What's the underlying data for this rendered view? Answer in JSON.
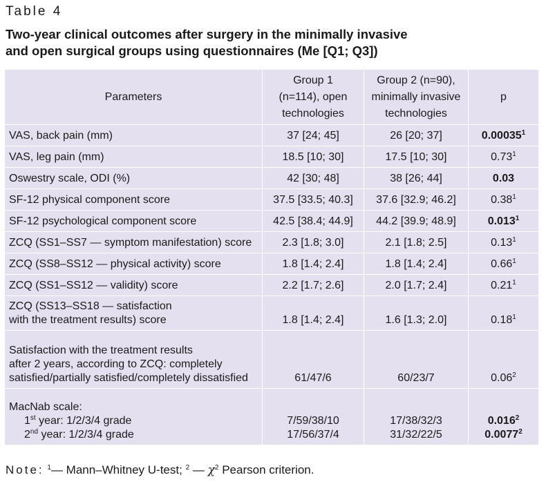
{
  "table_label": "Table 4",
  "title_line1": "Two-year clinical outcomes after surgery in the minimally invasive",
  "title_line2": "and open surgical groups using questionnaires (Me [Q1; Q3])",
  "headers": {
    "parameters": "Parameters",
    "group1": [
      "Group 1",
      "(n=114), open",
      "technologies"
    ],
    "group2": [
      "Group 2 (n=90),",
      "minimally invasive",
      "technologies"
    ],
    "p": "p"
  },
  "rows": [
    {
      "param": "VAS, back pain (mm)",
      "g1": "37 [24; 45]",
      "g2": "26 [20; 37]",
      "p": "0.00035",
      "sup": "1",
      "bold": true
    },
    {
      "param": "VAS, leg pain (mm)",
      "g1": "18.5 [10; 30]",
      "g2": "17.5 [10; 30]",
      "p": "0.73",
      "sup": "1",
      "bold": false
    },
    {
      "param": "Oswestry scale, ODI (%)",
      "g1": "42 [30; 48]",
      "g2": "38 [26; 44]",
      "p": "0.03",
      "sup": "",
      "bold": true
    },
    {
      "param": "SF-12 physical component score",
      "g1": "37.5 [33.5; 40.3]",
      "g2": "37.6 [32.9; 46.2]",
      "p": "0.38",
      "sup": "1",
      "bold": false
    },
    {
      "param": "SF-12 psychological component score",
      "g1": "42.5 [38.4; 44.9]",
      "g2": "44.2 [39.9; 48.9]",
      "p": "0.013",
      "sup": "1",
      "bold": true
    },
    {
      "param": "ZCQ (SS1–SS7 — symptom manifestation) score",
      "g1": "2.3 [1.8; 3.0]",
      "g2": "2.1 [1.8; 2.5]",
      "p": "0.13",
      "sup": "1",
      "bold": false
    },
    {
      "param": "ZCQ (SS8–SS12 — physical activity) score",
      "g1": "1.8 [1.4; 2.4]",
      "g2": "1.8 [1.4; 2.4]",
      "p": "0.66",
      "sup": "1",
      "bold": false
    },
    {
      "param": "ZCQ (SS1–SS12 — validity) score",
      "g1": "2.2 [1.7; 2.6]",
      "g2": "2.0 [1.7; 2.4]",
      "p": "0.21",
      "sup": "1",
      "bold": false
    }
  ],
  "row_zcq_sat": {
    "param_line1": "ZCQ (SS13–SS18 — satisfaction",
    "param_line2": "with the treatment results) score",
    "g1": "1.8 [1.4; 2.4]",
    "g2": "1.6 [1.3; 2.0]",
    "p": "0.18",
    "sup": "1"
  },
  "row_satisfaction": {
    "param_line1": "Satisfaction with the treatment results",
    "param_line2": "after 2 years, according to ZCQ: completely",
    "param_line3": "satisfied/partially satisfied/completely dissatisfied",
    "g1": "61/47/6",
    "g2": "60/23/7",
    "p": "0.06",
    "sup": "2"
  },
  "row_macnab": {
    "title": "MacNab scale:",
    "y1_prefix": "1",
    "y1_sup": "st",
    "y1_text": " year: 1/2/3/4 grade",
    "y1_g1": "7/59/38/10",
    "y1_g2": "17/38/32/3",
    "y1_p": "0.016",
    "y1_p_sup": "2",
    "y2_prefix": "2",
    "y2_sup": "nd",
    "y2_text": " year: 1/2/3/4 grade",
    "y2_g1": "17/56/37/4",
    "y2_g2": "31/32/22/5",
    "y2_p": "0.0077",
    "y2_p_sup": "2"
  },
  "note": {
    "label": "Note:",
    "sup1": "1",
    "text1": "— Mann–Whitney U-test;",
    "sup2": "2",
    "text2": "—",
    "chi": "χ",
    "chi_sup": "2",
    "text3": "Pearson criterion."
  }
}
